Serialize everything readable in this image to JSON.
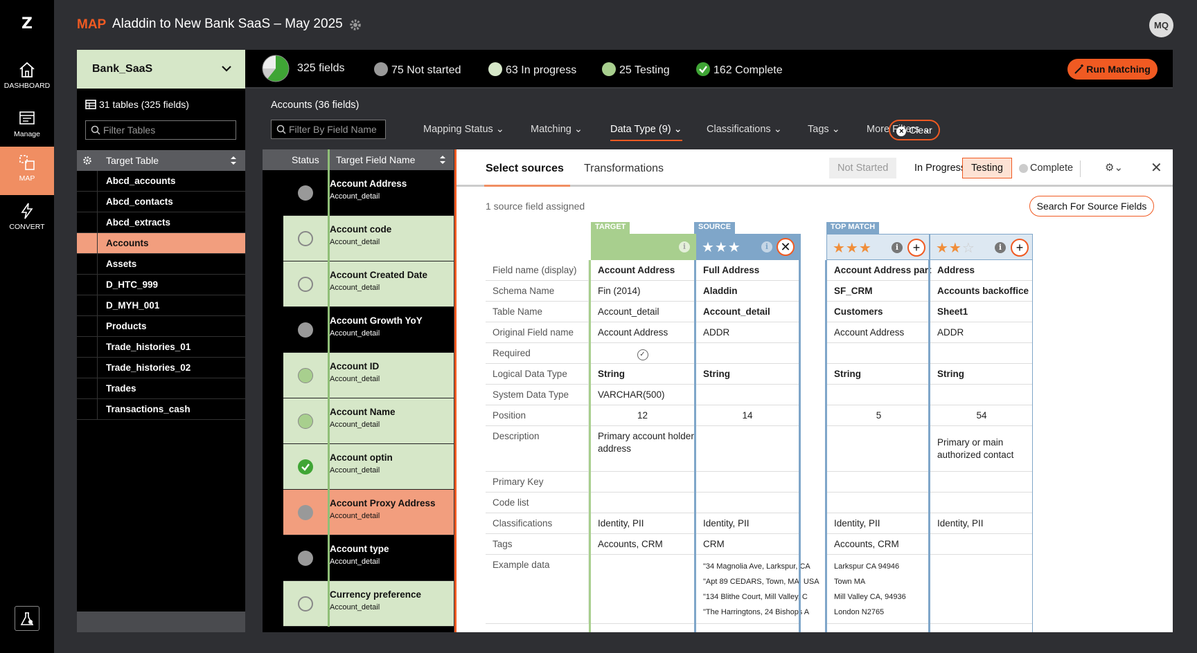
{
  "nav": {
    "logo": "Z",
    "items": [
      {
        "label": "DASHBOARD"
      },
      {
        "label": "Manage"
      },
      {
        "label": "MAP"
      },
      {
        "label": "CONVERT"
      }
    ]
  },
  "header": {
    "section": "MAP",
    "title": "Aladdin to New Bank SaaS – May 2025",
    "user_initials": "MQ"
  },
  "stats": {
    "bank": "Bank_SaaS",
    "fields": "325 fields",
    "not_started": "75 Not started",
    "in_progress": "63 In progress",
    "testing": "25 Testing",
    "complete": "162 Complete",
    "run_label": "Run Matching"
  },
  "tables": {
    "count_label": "31 tables (325 fields)",
    "filter_placeholder": "Filter Tables",
    "header": "Target Table",
    "rows": [
      "Abcd_accounts",
      "Abcd_contacts",
      "Abcd_extracts",
      "Accounts",
      "Assets",
      "D_HTC_999",
      "D_MYH_001",
      "Products",
      "Trade_histories_01",
      "Trade_histories_02",
      "Trades",
      "Transactions_cash"
    ]
  },
  "filters": {
    "title": "Accounts (36 fields)",
    "field_placeholder": "Filter By Field Name",
    "mapping_status": "Mapping Status",
    "matching": "Matching",
    "data_type": "Data Type (9)",
    "classifications": "Classifications",
    "tags": "Tags",
    "more": "More Filters",
    "clear": "Clear"
  },
  "fields": {
    "status_header": "Status",
    "name_header": "Target Field Name",
    "rows": [
      {
        "name": "Account Address",
        "table": "Account_detail"
      },
      {
        "name": "Account code",
        "table": "Account_detail"
      },
      {
        "name": "Account Created Date",
        "table": "Account_detail"
      },
      {
        "name": "Account Growth YoY",
        "table": "Account_detail"
      },
      {
        "name": "Account ID",
        "table": "Account_detail"
      },
      {
        "name": "Account Name",
        "table": "Account_detail"
      },
      {
        "name": "Account optin",
        "table": "Account_detail"
      },
      {
        "name": "Account Proxy Address",
        "table": "Account_detail"
      },
      {
        "name": "Account type",
        "table": "Account_detail"
      },
      {
        "name": "Currency preference",
        "table": "Account_detail"
      }
    ]
  },
  "detail": {
    "tab_select": "Select sources",
    "tab_transform": "Transformations",
    "status_not_started": "Not Started",
    "status_in_progress": "In Progress",
    "status_testing": "Testing",
    "status_complete": "Complete",
    "assigned": "1 source field assigned",
    "search_sources": "Search For Source Fields",
    "tag_target": "TARGET",
    "tag_source": "SOURCE",
    "tag_top": "TOP MATCH",
    "row_labels": [
      "Field name (display)",
      "Schema Name",
      "Table Name",
      "Original Field name",
      "Required",
      "Logical Data Type",
      "System Data Type",
      "Position",
      "Description",
      "Primary Key",
      "Code list",
      "Classifications",
      "Tags",
      "Example data"
    ],
    "target": [
      "Account Address",
      "Fin (2014)",
      "Account_detail",
      "Account Address",
      "",
      "String",
      "VARCHAR(500)",
      "12",
      "Primary account holder",
      "",
      "",
      "Identity, PII",
      "Accounts, CRM",
      ""
    ],
    "target_desc2": "address",
    "source": [
      "Full Address",
      "Aladdin",
      "Account_detail",
      "ADDR",
      "",
      "String",
      "",
      "14",
      "",
      "",
      "",
      "Identity, PII",
      "CRM",
      ""
    ],
    "match1": [
      "Account Address part",
      "SF_CRM",
      "Customers",
      "Account Address",
      "",
      "String",
      "",
      "5",
      "",
      "",
      "",
      "Identity, PII",
      "Accounts, CRM",
      ""
    ],
    "match2": [
      "Address",
      "Accounts backoffice",
      "Sheet1",
      "ADDR",
      "",
      "String",
      "",
      "54",
      "Primary or main",
      "",
      "",
      "Identity, PII",
      "",
      ""
    ],
    "match2_desc2": "authorized contact",
    "source_examples": [
      "\"34 Magnolia Ave, Larkspur, CA",
      "\"Apt 89 CEDARS, Town, MA, USA",
      "\"134 Blithe Court, Mill Valley, C",
      "\"The Harringtons, 24 Bishops A"
    ],
    "match1_examples": [
      "Larkspur CA 94946",
      "Town MA",
      "Mill Valley CA, 94936",
      " London N2765"
    ],
    "source_rating": 3,
    "match1_rating": 3,
    "match2_rating": 2
  },
  "colors": {
    "accent": "#f05a22",
    "light_green": "#d6e7c8",
    "salmon": "#f29e7e",
    "source_blue": "#7fa6c9"
  }
}
